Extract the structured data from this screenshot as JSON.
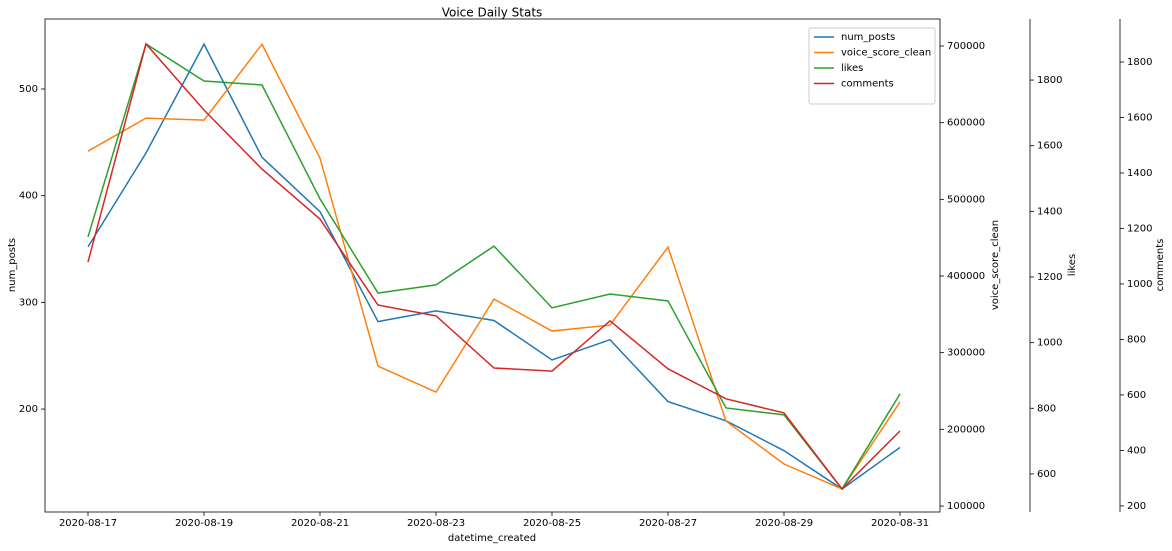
{
  "chart_data": {
    "type": "line",
    "title": "Voice Daily Stats",
    "xlabel": "datetime_created",
    "ylabel": "num_posts",
    "y2label": "voice_score_clean",
    "y3label": "likes",
    "y4label": "comments",
    "x": [
      "2020-08-17",
      "2020-08-18",
      "2020-08-19",
      "2020-08-20",
      "2020-08-21",
      "2020-08-22",
      "2020-08-23",
      "2020-08-24",
      "2020-08-25",
      "2020-08-26",
      "2020-08-27",
      "2020-08-28",
      "2020-08-29",
      "2020-08-30",
      "2020-08-31"
    ],
    "xticks": [
      "2020-08-17",
      "2020-08-19",
      "2020-08-21",
      "2020-08-23",
      "2020-08-25",
      "2020-08-27",
      "2020-08-29",
      "2020-08-31"
    ],
    "ylim": [
      103.5,
      565.6
    ],
    "yticks": [
      200,
      300,
      400,
      500
    ],
    "y2lim": [
      92200,
      735200
    ],
    "y2ticks": [
      100000,
      200000,
      300000,
      400000,
      500000,
      600000,
      700000
    ],
    "y3lim": [
      484,
      1986
    ],
    "y3ticks": [
      600,
      800,
      1000,
      1200,
      1400,
      1600,
      1800
    ],
    "y4lim": [
      178,
      1955
    ],
    "y4ticks": [
      200,
      400,
      600,
      800,
      1000,
      1200,
      1400,
      1600,
      1800
    ],
    "legend": "upper right",
    "series": [
      {
        "name": "num_posts",
        "color": "#1f77b4",
        "axis": "y",
        "values": [
          352,
          440,
          542,
          436,
          385,
          282,
          292,
          283,
          246,
          265,
          207,
          189,
          161,
          125,
          164
        ]
      },
      {
        "name": "voice_score_clean",
        "color": "#ff7f0e",
        "axis": "y2",
        "values": [
          562800,
          605900,
          603300,
          702300,
          553700,
          282500,
          248600,
          369900,
          328200,
          336000,
          437700,
          210800,
          154800,
          122200,
          235600
        ]
      },
      {
        "name": "likes",
        "color": "#2ca02c",
        "axis": "y3",
        "values": [
          1322,
          1910,
          1797,
          1785,
          1438,
          1151,
          1176,
          1294,
          1106,
          1148,
          1127,
          801,
          780,
          554,
          844
        ]
      },
      {
        "name": "comments",
        "color": "#d62728",
        "axis": "y4",
        "values": [
          1079,
          1865,
          1627,
          1414,
          1234,
          924,
          885,
          697,
          686,
          867,
          694,
          586,
          535,
          261,
          470
        ]
      }
    ]
  }
}
